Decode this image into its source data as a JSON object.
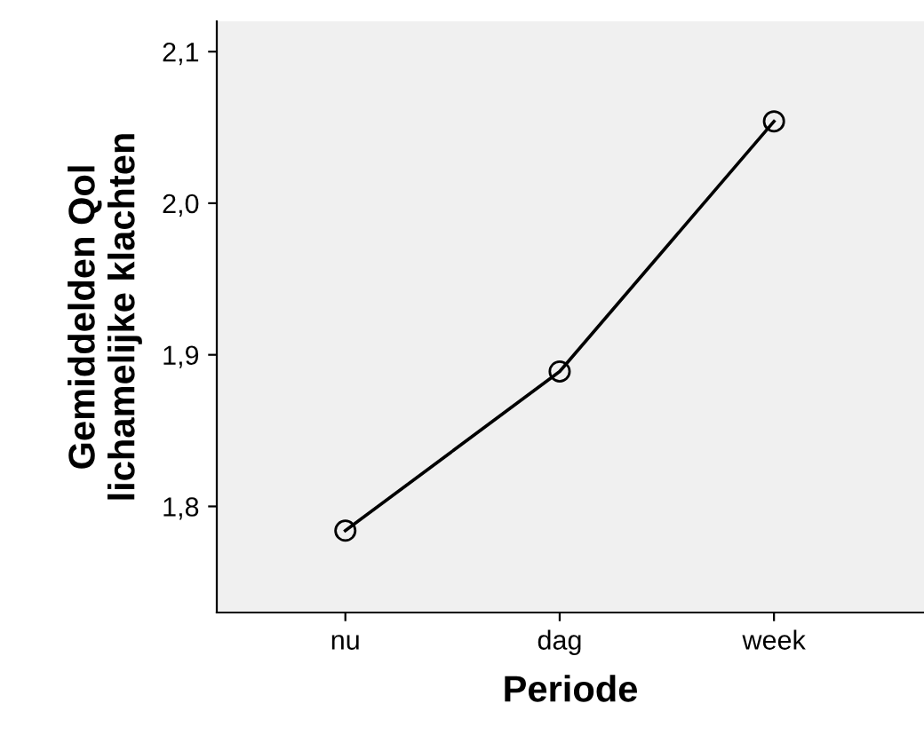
{
  "chart_data": {
    "type": "line",
    "xlabel": "Periode",
    "ylabel": "Gemiddelden Qol\nlichamelijke klachten",
    "categories": [
      "nu",
      "dag",
      "week"
    ],
    "series": [
      {
        "color": "#000000",
        "values": [
          1.784,
          1.889,
          2.054
        ]
      }
    ],
    "ylim": [
      1.73,
      2.12
    ],
    "yticks": [
      {
        "value": 1.8,
        "label": "1,8"
      },
      {
        "value": 1.9,
        "label": "1,9"
      },
      {
        "value": 2.0,
        "label": "2,0"
      },
      {
        "value": 2.1,
        "label": "2,1"
      }
    ],
    "marker": "circle",
    "line_style": "solid",
    "grid": false,
    "legend": false
  }
}
